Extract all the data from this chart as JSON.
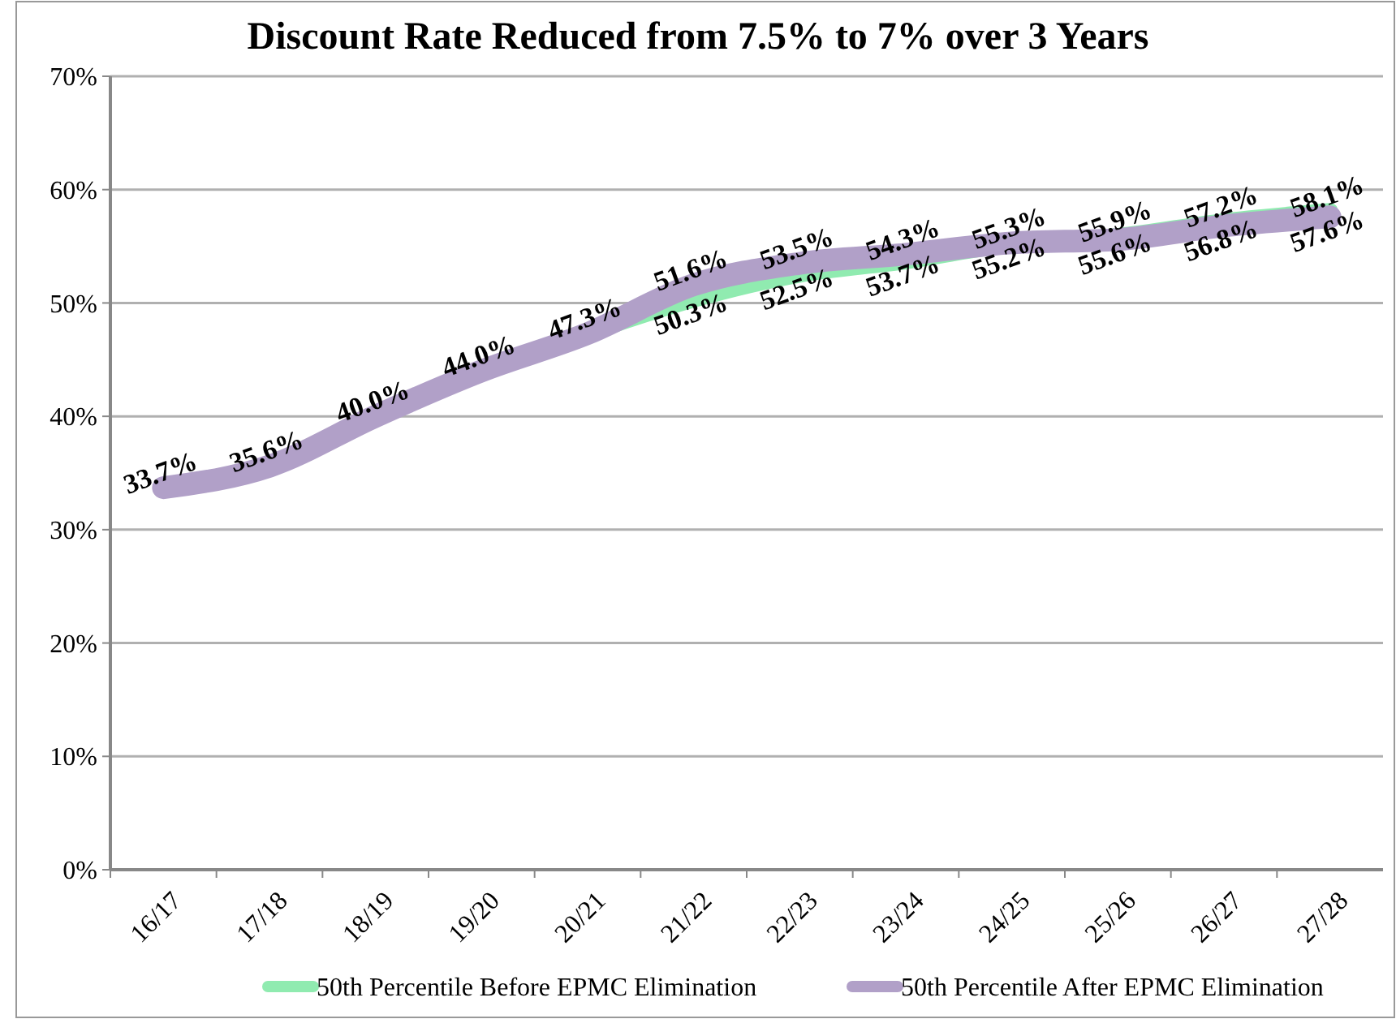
{
  "chart_data": {
    "type": "line",
    "title": "Discount Rate Reduced from 7.5% to 7% over 3 Years",
    "categories": [
      "16/17",
      "17/18",
      "18/19",
      "19/20",
      "20/21",
      "21/22",
      "22/23",
      "23/24",
      "24/25",
      "25/26",
      "26/27",
      "27/28"
    ],
    "series": [
      {
        "name": "50th Percentile Before EPMC Elimination",
        "color": "#90ebb0",
        "values": [
          null,
          null,
          null,
          null,
          47.3,
          50.3,
          52.5,
          53.7,
          55.2,
          55.9,
          57.2,
          58.1
        ],
        "value_labels": [
          null,
          null,
          null,
          null,
          null,
          "50.3%",
          "52.5%",
          "53.7%",
          "55.2%",
          "55.9%",
          "57.2%",
          "58.1%"
        ]
      },
      {
        "name": "50th Percentile After EPMC Elimination",
        "color": "#b1a0c8",
        "values": [
          33.7,
          35.6,
          40.0,
          44.0,
          47.3,
          51.6,
          53.5,
          54.3,
          55.3,
          55.6,
          56.8,
          57.6
        ],
        "value_labels": [
          "33.7%",
          "35.6%",
          "40.0%",
          "44.0%",
          "47.3%",
          "51.6%",
          "53.5%",
          "54.3%",
          "55.3%",
          "55.6%",
          "56.8%",
          "57.6%"
        ]
      }
    ],
    "ylim": [
      0,
      70
    ],
    "yticks": [
      {
        "value": 0,
        "label": "0%"
      },
      {
        "value": 10,
        "label": "10%"
      },
      {
        "value": 20,
        "label": "20%"
      },
      {
        "value": 30,
        "label": "30%"
      },
      {
        "value": 40,
        "label": "40%"
      },
      {
        "value": 50,
        "label": "50%"
      },
      {
        "value": 60,
        "label": "60%"
      },
      {
        "value": 70,
        "label": "70%"
      }
    ],
    "grid": "y",
    "legend": "bottom",
    "marker": "none",
    "line_style": "solid"
  }
}
